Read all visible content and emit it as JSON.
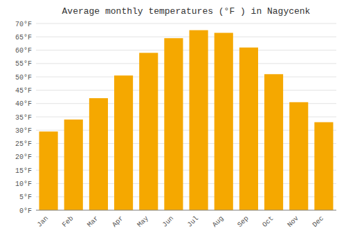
{
  "chart_data": {
    "type": "bar",
    "title": "Average monthly temperatures (°F ) in Nagycenk",
    "categories": [
      "Jan",
      "Feb",
      "Mar",
      "Apr",
      "May",
      "Jun",
      "Jul",
      "Aug",
      "Sep",
      "Oct",
      "Nov",
      "Dec"
    ],
    "values": [
      29.5,
      34.0,
      42.0,
      50.5,
      59.0,
      64.5,
      67.5,
      66.5,
      61.0,
      51.0,
      40.5,
      33.0
    ],
    "color": "#F5A800",
    "ylim": [
      0,
      70
    ],
    "yticks": [
      {
        "value": 0,
        "label": "0°F"
      },
      {
        "value": 5,
        "label": "5°F"
      },
      {
        "value": 10,
        "label": "10°F"
      },
      {
        "value": 15,
        "label": "15°F"
      },
      {
        "value": 20,
        "label": "20°F"
      },
      {
        "value": 25,
        "label": "25°F"
      },
      {
        "value": 30,
        "label": "30°F"
      },
      {
        "value": 35,
        "label": "35°F"
      },
      {
        "value": 40,
        "label": "40°F"
      },
      {
        "value": 45,
        "label": "45°F"
      },
      {
        "value": 50,
        "label": "50°F"
      },
      {
        "value": 55,
        "label": "55°F"
      },
      {
        "value": 60,
        "label": "60°F"
      },
      {
        "value": 65,
        "label": "65°F"
      },
      {
        "value": 70,
        "label": "70°F"
      }
    ],
    "grid": true
  }
}
